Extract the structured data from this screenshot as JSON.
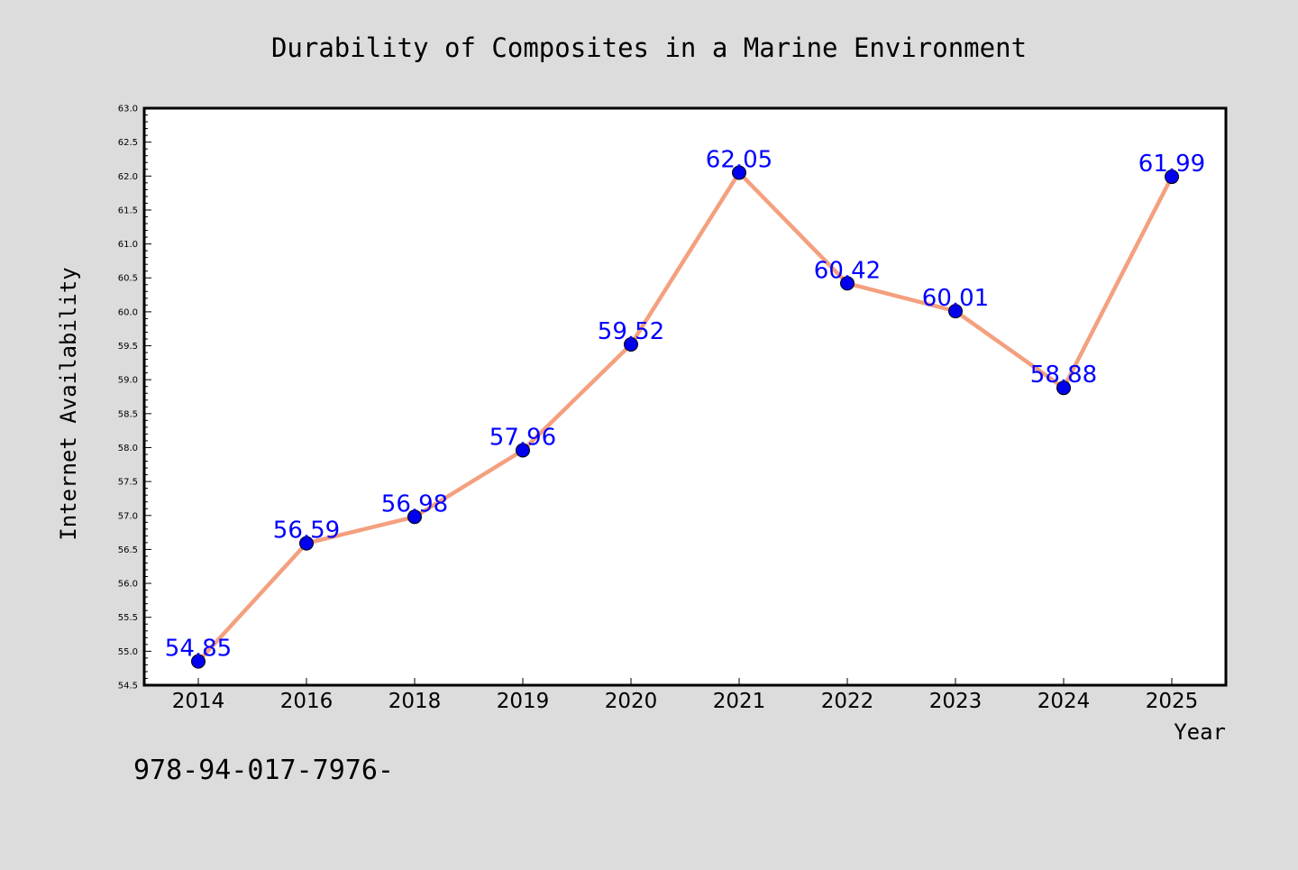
{
  "chart_data": {
    "type": "line",
    "title": "Durability of Composites in a Marine Environment",
    "xlabel": "Year",
    "ylabel": "Internet Availability",
    "categories": [
      "2014",
      "2016",
      "2018",
      "2019",
      "2020",
      "2021",
      "2022",
      "2023",
      "2024",
      "2025"
    ],
    "values": [
      54.85,
      56.59,
      56.98,
      57.96,
      59.52,
      62.05,
      60.42,
      60.01,
      58.88,
      61.99
    ],
    "data_labels": [
      "54.85",
      "56.59",
      "56.98",
      "57.96",
      "59.52",
      "62.05",
      "60.42",
      "60.01",
      "58.88",
      "61.99"
    ],
    "ylim": [
      54.5,
      63.0
    ],
    "yticks": [
      "54.5",
      "55.0",
      "55.5",
      "56.0",
      "56.5",
      "57.0",
      "57.5",
      "58.0",
      "58.5",
      "59.0",
      "59.5",
      "60.0",
      "60.5",
      "61.0",
      "61.5",
      "62.0",
      "62.5",
      "63.0"
    ],
    "grid": false,
    "legend": "none",
    "colors": {
      "line": "#f4a07f",
      "marker": "#0000ee",
      "data_label": "#0000ff",
      "background": "#dcdcdc",
      "plot_background": "#ffffff"
    }
  },
  "footnote": "978-94-017-7976-"
}
